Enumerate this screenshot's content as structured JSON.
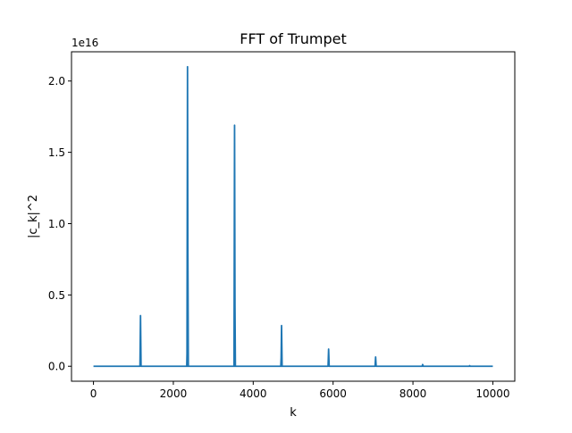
{
  "chart_data": {
    "type": "line",
    "title": "FFT of Trumpet",
    "xlabel": "k",
    "ylabel": "|c_k|^2",
    "y_offset_label": "1e16",
    "x_range": [
      -550,
      10550
    ],
    "y_range": [
      -0.105,
      2.205
    ],
    "x_ticks": [
      0,
      2000,
      4000,
      6000,
      8000,
      10000
    ],
    "x_tick_labels": [
      "0",
      "2000",
      "4000",
      "6000",
      "8000",
      "10000"
    ],
    "y_ticks": [
      0.0,
      0.5,
      1.0,
      1.5,
      2.0
    ],
    "y_tick_labels": [
      "0.0",
      "0.5",
      "1.0",
      "1.5",
      "2.0"
    ],
    "y_multiplier": 1e+16,
    "grid": false,
    "line_color": "#1f77b4",
    "k_start": 0,
    "k_end": 10000,
    "peaks": [
      {
        "k": 1178,
        "value": 0.355
      },
      {
        "k": 2355,
        "value": 2.1
      },
      {
        "k": 2362,
        "value": 0.94
      },
      {
        "k": 2349,
        "value": 0.18
      },
      {
        "k": 3533,
        "value": 1.69
      },
      {
        "k": 3540,
        "value": 0.55
      },
      {
        "k": 4710,
        "value": 0.285
      },
      {
        "k": 4704,
        "value": 0.09
      },
      {
        "k": 5888,
        "value": 0.12
      },
      {
        "k": 7065,
        "value": 0.065
      },
      {
        "k": 8243,
        "value": 0.012
      },
      {
        "k": 9420,
        "value": 0.004
      }
    ]
  }
}
